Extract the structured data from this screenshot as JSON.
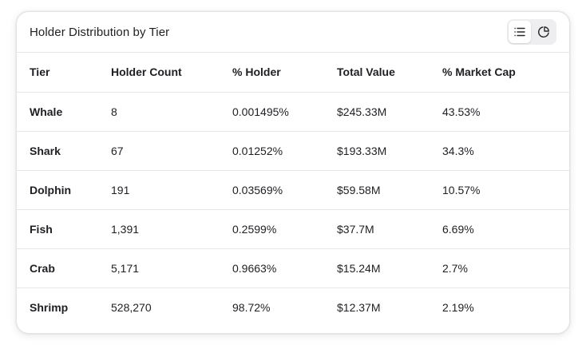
{
  "card": {
    "title": "Holder Distribution by Tier"
  },
  "view_toggle": {
    "options": [
      {
        "icon": "list-icon",
        "active": true
      },
      {
        "icon": "pie-chart-icon",
        "active": false
      }
    ]
  },
  "table": {
    "columns": [
      "Tier",
      "Holder Count",
      "% Holder",
      "Total Value",
      "% Market Cap"
    ],
    "rows": [
      [
        "Whale",
        "8",
        "0.001495%",
        "$245.33M",
        "43.53%"
      ],
      [
        "Shark",
        "67",
        "0.01252%",
        "$193.33M",
        "34.3%"
      ],
      [
        "Dolphin",
        "191",
        "0.03569%",
        "$59.58M",
        "10.57%"
      ],
      [
        "Fish",
        "1,391",
        "0.2599%",
        "$37.7M",
        "6.69%"
      ],
      [
        "Crab",
        "5,171",
        "0.9663%",
        "$15.24M",
        "2.7%"
      ],
      [
        "Shrimp",
        "528,270",
        "98.72%",
        "$12.37M",
        "2.19%"
      ]
    ]
  }
}
